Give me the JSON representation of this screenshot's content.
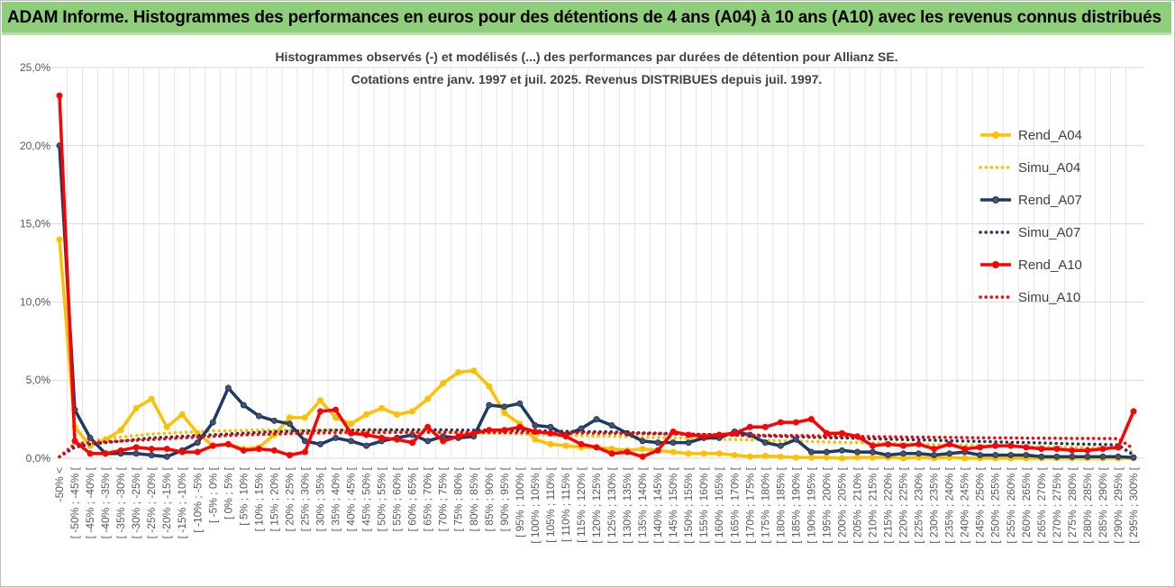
{
  "header": {
    "title": "ADAM Informe. Histogrammes des performances en euros pour des détentions de 4 ans (A04) à 10 ans (A10) avec les revenus connus distribués"
  },
  "chart_data": {
    "type": "line",
    "title": "Histogrammes observés (-) et modélisés (...) des performances par durées de détention pour Allianz SE.",
    "subtitle": "Cotations entre janv. 1997 et juil. 2025. Revenus DISTRIBUES depuis juil. 1997.",
    "ylim": [
      0,
      25
    ],
    "yticks": [
      "0,0%",
      "5,0%",
      "10,0%",
      "15,0%",
      "20,0%",
      "25,0%"
    ],
    "grid": true,
    "legend_position": "right",
    "categories": [
      "-50% <",
      "[ -50% ; -45% [",
      "[ -45% ; -40% [",
      "[ -40% ; -35% [",
      "[ -35% ; -30% [",
      "[ -30% ; -25% [",
      "[ -25% ; -20% [",
      "[ -20% ; -15% [",
      "[ -15% ; -10% [",
      "[ -10% ; -5% [",
      "[ -5% ; 0% [",
      "[ 0% ; 5% [",
      "[ 5% ; 10% [",
      "[ 10% ; 15% [",
      "[ 15% ; 20% [",
      "[ 20% ; 25% [",
      "[ 25% ; 30% [",
      "[ 30% ; 35% [",
      "[ 35% ; 40% [",
      "[ 40% ; 45% [",
      "[ 45% ; 50% [",
      "[ 50% ; 55% [",
      "[ 55% ; 60% [",
      "[ 60% ; 65% [",
      "[ 65% ; 70% [",
      "[ 70% ; 75% [",
      "[ 75% ; 80% [",
      "[ 80% ; 85% [",
      "[ 85% ; 90% [",
      "[ 90% ; 95% [",
      "[ 95% ; 100% [",
      "[ 100% ; 105% [",
      "[ 105% ; 110% [",
      "[ 110% ; 115% [",
      "[ 115% ; 120% [",
      "[ 120% ; 125% [",
      "[ 125% ; 130% [",
      "[ 130% ; 135% [",
      "[ 135% ; 140% [",
      "[ 140% ; 145% [",
      "[ 145% ; 150% [",
      "[ 150% ; 155% [",
      "[ 155% ; 160% [",
      "[ 160% ; 165% [",
      "[ 165% ; 170% [",
      "[ 170% ; 175% [",
      "[ 175% ; 180% [",
      "[ 180% ; 185% [",
      "[ 185% ; 190% [",
      "[ 190% ; 195% [",
      "[ 195% ; 200% [",
      "[ 200% ; 205% [",
      "[ 205% ; 210% [",
      "[ 210% ; 215% [",
      "[ 215% ; 220% [",
      "[ 220% ; 225% [",
      "[ 225% ; 230% [",
      "[ 230% ; 235% [",
      "[ 235% ; 240% [",
      "[ 240% ; 245% [",
      "[ 245% ; 250% [",
      "[ 250% ; 255% [",
      "[ 255% ; 260% [",
      "[ 260% ; 265% [",
      "[ 265% ; 270% [",
      "[ 270% ; 275% [",
      "[ 275% ; 280% [",
      "[ 280% ; 285% [",
      "[ 285% ; 290% [",
      "[ 290% ; 295% [",
      "[ 295% ; 300% ["
    ],
    "series": [
      {
        "name": "Rend_A04",
        "color": "#ffc000",
        "style": "solid",
        "marker": "circle",
        "values": [
          14.0,
          2.0,
          0.8,
          1.2,
          1.8,
          3.2,
          3.8,
          2.0,
          2.8,
          1.6,
          0.8,
          0.9,
          0.6,
          0.7,
          1.5,
          2.6,
          2.6,
          3.7,
          2.6,
          2.2,
          2.8,
          3.2,
          2.8,
          3.0,
          3.8,
          4.8,
          5.5,
          5.6,
          4.6,
          2.9,
          2.2,
          1.2,
          0.9,
          0.8,
          0.7,
          0.7,
          0.6,
          0.5,
          0.6,
          0.5,
          0.4,
          0.3,
          0.3,
          0.3,
          0.2,
          0.1,
          0.15,
          0.1,
          0.05,
          0.05,
          0.05,
          0.0,
          0.05,
          0.05,
          0.05,
          0.0,
          0.05,
          0.0,
          0.05,
          0.0,
          0.0,
          0.0,
          0.0,
          0.0,
          0.0,
          0.0,
          0.0,
          0.0,
          0.0,
          0.0,
          0.0
        ]
      },
      {
        "name": "Simu_A04",
        "color": "#ffc000",
        "style": "dotted",
        "marker": "none",
        "values": [
          0.1,
          0.9,
          1.1,
          1.25,
          1.35,
          1.45,
          1.55,
          1.6,
          1.65,
          1.7,
          1.75,
          1.75,
          1.78,
          1.8,
          1.8,
          1.8,
          1.8,
          1.8,
          1.78,
          1.78,
          1.75,
          1.75,
          1.72,
          1.7,
          1.7,
          1.68,
          1.65,
          1.62,
          1.6,
          1.58,
          1.55,
          1.52,
          1.5,
          1.48,
          1.45,
          1.42,
          1.4,
          1.38,
          1.35,
          1.32,
          1.3,
          1.28,
          1.25,
          1.22,
          1.2,
          1.18,
          1.15,
          1.12,
          1.1,
          1.08,
          1.05,
          1.02,
          1.0,
          0.98,
          0.95,
          0.93,
          0.9,
          0.88,
          0.86,
          0.84,
          0.82,
          0.8,
          0.78,
          0.76,
          0.74,
          0.72,
          0.7,
          0.68,
          0.66,
          0.64,
          0.4
        ]
      },
      {
        "name": "Rend_A07",
        "color": "#1f3864",
        "style": "solid",
        "marker": "circle",
        "values": [
          20.0,
          3.1,
          1.3,
          0.3,
          0.3,
          0.3,
          0.2,
          0.1,
          0.5,
          1.0,
          2.3,
          4.5,
          3.4,
          2.7,
          2.4,
          2.2,
          1.1,
          0.9,
          1.3,
          1.1,
          0.8,
          1.1,
          1.3,
          1.5,
          1.1,
          1.4,
          1.3,
          1.4,
          3.4,
          3.3,
          3.5,
          2.1,
          2.0,
          1.5,
          1.9,
          2.5,
          2.1,
          1.6,
          1.1,
          1.0,
          1.0,
          1.0,
          1.3,
          1.3,
          1.7,
          1.5,
          1.0,
          0.8,
          1.2,
          0.4,
          0.4,
          0.5,
          0.4,
          0.4,
          0.2,
          0.3,
          0.3,
          0.2,
          0.3,
          0.4,
          0.2,
          0.2,
          0.2,
          0.2,
          0.1,
          0.1,
          0.1,
          0.1,
          0.1,
          0.1,
          0.05
        ]
      },
      {
        "name": "Simu_A07",
        "color": "#1f3864",
        "style": "dotted",
        "marker": "none",
        "values": [
          0.1,
          0.7,
          0.9,
          1.0,
          1.1,
          1.2,
          1.3,
          1.35,
          1.4,
          1.45,
          1.5,
          1.55,
          1.6,
          1.65,
          1.7,
          1.72,
          1.75,
          1.78,
          1.8,
          1.8,
          1.82,
          1.82,
          1.82,
          1.82,
          1.82,
          1.82,
          1.8,
          1.8,
          1.8,
          1.78,
          1.78,
          1.75,
          1.75,
          1.72,
          1.7,
          1.7,
          1.68,
          1.65,
          1.62,
          1.6,
          1.58,
          1.55,
          1.52,
          1.5,
          1.48,
          1.45,
          1.42,
          1.4,
          1.38,
          1.35,
          1.32,
          1.3,
          1.28,
          1.25,
          1.22,
          1.2,
          1.18,
          1.15,
          1.12,
          1.1,
          1.08,
          1.05,
          1.02,
          1.0,
          0.98,
          0.95,
          0.92,
          0.9,
          0.88,
          0.85,
          0.2
        ]
      },
      {
        "name": "Rend_A10",
        "color": "#ff0000",
        "style": "solid",
        "marker": "circle",
        "values": [
          23.2,
          1.1,
          0.3,
          0.3,
          0.5,
          0.7,
          0.6,
          0.6,
          0.4,
          0.4,
          0.8,
          0.9,
          0.5,
          0.6,
          0.5,
          0.2,
          0.4,
          3.0,
          3.1,
          1.6,
          1.5,
          1.3,
          1.2,
          1.0,
          2.0,
          1.1,
          1.4,
          1.6,
          1.8,
          1.8,
          2.0,
          1.7,
          1.6,
          1.4,
          0.9,
          0.7,
          0.3,
          0.4,
          0.1,
          0.5,
          1.7,
          1.5,
          1.4,
          1.5,
          1.6,
          2.0,
          2.0,
          2.3,
          2.3,
          2.5,
          1.6,
          1.6,
          1.4,
          0.8,
          0.9,
          0.8,
          0.9,
          0.6,
          0.9,
          0.6,
          0.7,
          0.8,
          0.8,
          0.7,
          0.6,
          0.6,
          0.5,
          0.5,
          0.6,
          0.7,
          3.0
        ]
      },
      {
        "name": "Simu_A10",
        "color": "#ff0000",
        "style": "dotted",
        "marker": "none",
        "values": [
          0.1,
          0.9,
          1.0,
          1.05,
          1.1,
          1.15,
          1.2,
          1.25,
          1.3,
          1.35,
          1.4,
          1.45,
          1.5,
          1.52,
          1.55,
          1.58,
          1.6,
          1.62,
          1.63,
          1.65,
          1.65,
          1.65,
          1.66,
          1.66,
          1.66,
          1.66,
          1.66,
          1.66,
          1.66,
          1.65,
          1.65,
          1.64,
          1.63,
          1.62,
          1.62,
          1.6,
          1.6,
          1.58,
          1.58,
          1.56,
          1.55,
          1.54,
          1.52,
          1.5,
          1.5,
          1.48,
          1.47,
          1.46,
          1.45,
          1.44,
          1.42,
          1.4,
          1.4,
          1.38,
          1.37,
          1.36,
          1.35,
          1.34,
          1.33,
          1.32,
          1.31,
          1.3,
          1.3,
          1.29,
          1.28,
          1.28,
          1.27,
          1.27,
          1.26,
          1.26,
          0.6
        ]
      }
    ]
  }
}
